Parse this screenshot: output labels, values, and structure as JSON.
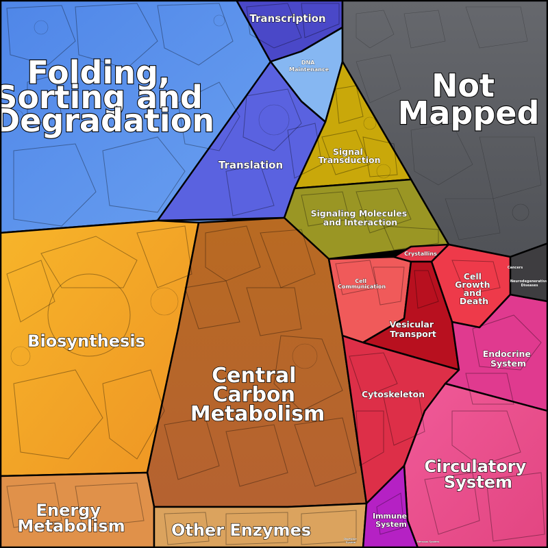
{
  "title": "",
  "colors": {
    "folding": "#5b8def",
    "transcription": "#4a48c8",
    "dna": "#86b7f2",
    "translation": "#5a62e0",
    "signal_transduction": "#c9a80a",
    "signaling_molecules": "#9a9624",
    "not_mapped": "#5c5e63",
    "biosynthesis": "#f3a526",
    "central_carbon": "#b8661e",
    "energy": "#e0914a",
    "other_enzymes": "#dba35e",
    "cell_communication": "#f05a5a",
    "crystallins": "#e4384c",
    "cell_growth": "#ee3a4a",
    "vesicular": "#b8101f",
    "cytoskeleton": "#dd2f48",
    "endocrine": "#e03a8f",
    "circulatory": "#ea4d8e",
    "immune": "#b521c4",
    "cancers": "#3e3d40",
    "background": "#000000"
  },
  "regions": [
    {
      "id": "folding",
      "label_lines": [
        "Folding,",
        "Sorting and",
        "Degradation"
      ]
    },
    {
      "id": "transcription",
      "label_lines": [
        "Transcription"
      ]
    },
    {
      "id": "dna",
      "label_lines": [
        "DNA",
        "Maintenance"
      ]
    },
    {
      "id": "translation",
      "label_lines": [
        "Translation"
      ]
    },
    {
      "id": "not_mapped",
      "label_lines": [
        "Not",
        "Mapped"
      ]
    },
    {
      "id": "signal_transduction",
      "label_lines": [
        "Signal",
        "Transduction"
      ]
    },
    {
      "id": "signaling_molecules",
      "label_lines": [
        "Signaling Molecules",
        "and Interaction"
      ]
    },
    {
      "id": "biosynthesis",
      "label_lines": [
        "Biosynthesis"
      ]
    },
    {
      "id": "central_carbon",
      "label_lines": [
        "Central",
        "Carbon",
        "Metabolism"
      ]
    },
    {
      "id": "energy",
      "label_lines": [
        "Energy",
        "Metabolism"
      ]
    },
    {
      "id": "other_enzymes",
      "label_lines": [
        "Other Enzymes"
      ]
    },
    {
      "id": "cell_communication",
      "label_lines": [
        "Cell",
        "Communication"
      ]
    },
    {
      "id": "crystallins",
      "label_lines": [
        "Crystallins"
      ]
    },
    {
      "id": "cell_growth",
      "label_lines": [
        "Cell",
        "Growth",
        "and",
        "Death"
      ]
    },
    {
      "id": "vesicular",
      "label_lines": [
        "Vesicular",
        "Transport"
      ]
    },
    {
      "id": "cytoskeleton",
      "label_lines": [
        "Cytoskeleton"
      ]
    },
    {
      "id": "endocrine",
      "label_lines": [
        "Endocrine",
        "System"
      ]
    },
    {
      "id": "circulatory",
      "label_lines": [
        "Circulatory",
        "System"
      ]
    },
    {
      "id": "immune",
      "label_lines": [
        "Immune",
        "System"
      ]
    },
    {
      "id": "cancers",
      "label_lines": [
        "Cancers"
      ]
    },
    {
      "id": "neurodegenerative",
      "label_lines": [
        "Neurodegenerative",
        "Diseases"
      ]
    },
    {
      "id": "digestive",
      "label_lines": [
        "Digestive",
        "System"
      ]
    },
    {
      "id": "nervous",
      "label_lines": [
        "Nervous System"
      ]
    }
  ]
}
